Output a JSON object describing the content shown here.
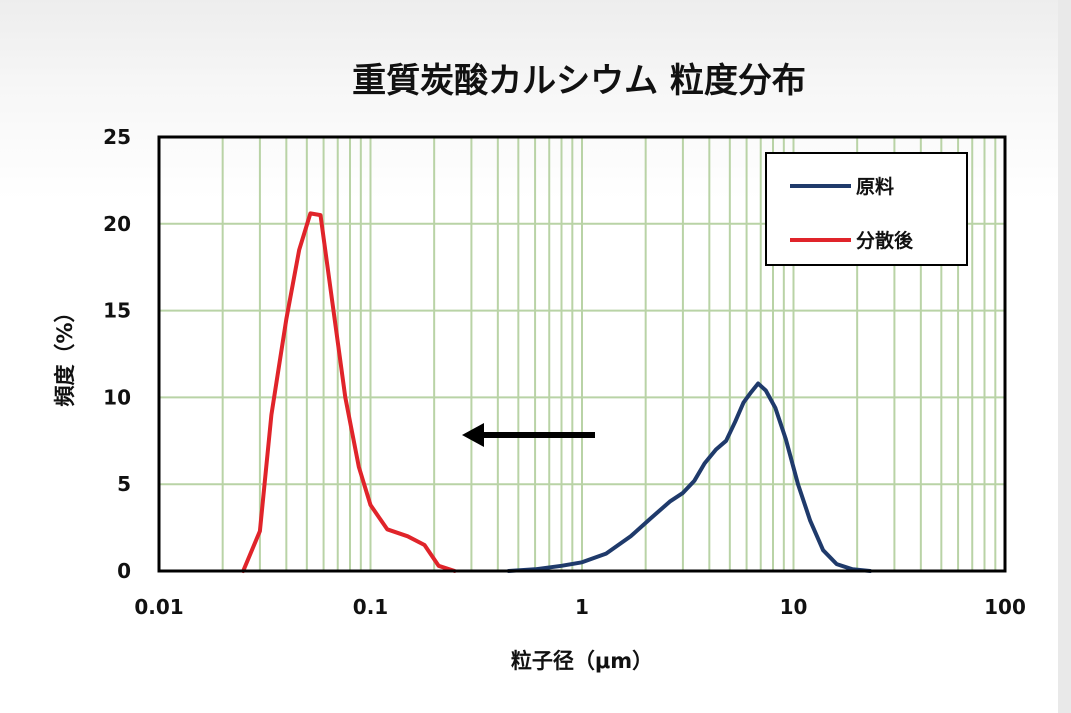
{
  "chart_data": {
    "type": "line",
    "title": "重質炭酸カルシウム  粒度分布",
    "xlabel": "粒子径（μm）",
    "ylabel": "頻度（%）",
    "xscale": "log",
    "xlim": [
      0.01,
      100
    ],
    "ylim": [
      0,
      25
    ],
    "xticks": [
      0.01,
      0.1,
      1,
      10,
      100
    ],
    "xtick_labels": [
      "0.01",
      "0.1",
      "1",
      "10",
      "100"
    ],
    "yticks": [
      0,
      5,
      10,
      15,
      20,
      25
    ],
    "ytick_labels": [
      "0",
      "5",
      "10",
      "15",
      "20",
      "25"
    ],
    "grid": true,
    "legend_position": "top-right",
    "annotations": [
      {
        "type": "arrow",
        "direction": "left"
      }
    ],
    "series": [
      {
        "name": "原料",
        "color": "#1f3a6b",
        "x": [
          0.45,
          0.6,
          0.8,
          1.0,
          1.3,
          1.7,
          2.1,
          2.6,
          3.0,
          3.4,
          3.8,
          4.3,
          4.8,
          5.3,
          5.8,
          6.3,
          6.8,
          7.4,
          8.2,
          9.2,
          10.5,
          12.0,
          13.8,
          16.0,
          19.0,
          23.0
        ],
        "y": [
          0,
          0.1,
          0.3,
          0.5,
          1.0,
          2.0,
          3.0,
          4.0,
          4.5,
          5.2,
          6.2,
          7.0,
          7.5,
          8.6,
          9.7,
          10.3,
          10.8,
          10.4,
          9.4,
          7.6,
          5.0,
          2.9,
          1.2,
          0.4,
          0.1,
          0
        ]
      },
      {
        "name": "分散後",
        "color": "#e0242a",
        "x": [
          0.025,
          0.03,
          0.034,
          0.04,
          0.046,
          0.052,
          0.058,
          0.066,
          0.076,
          0.088,
          0.1,
          0.12,
          0.15,
          0.18,
          0.21,
          0.25
        ],
        "y": [
          0,
          2.3,
          9.0,
          14.5,
          18.5,
          20.6,
          20.5,
          15.5,
          10.0,
          6.0,
          3.8,
          2.4,
          2.0,
          1.5,
          0.3,
          0
        ]
      }
    ]
  }
}
